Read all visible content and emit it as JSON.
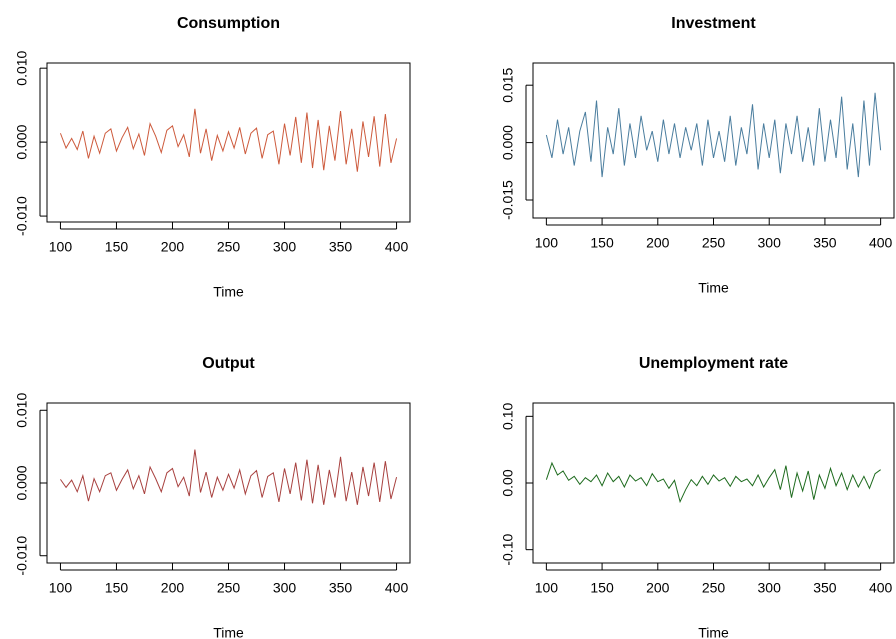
{
  "chart_data": [
    {
      "type": "line",
      "title": "Consumption",
      "xlabel": "Time",
      "color": "#cd5a3c",
      "x": [
        100,
        105,
        110,
        115,
        120,
        125,
        130,
        135,
        140,
        145,
        150,
        155,
        160,
        165,
        170,
        175,
        180,
        185,
        190,
        195,
        200,
        205,
        210,
        215,
        220,
        225,
        230,
        235,
        240,
        245,
        250,
        255,
        260,
        265,
        270,
        275,
        280,
        285,
        290,
        295,
        300,
        305,
        310,
        315,
        320,
        325,
        330,
        335,
        340,
        345,
        350,
        355,
        360,
        365,
        370,
        375,
        380,
        385,
        390,
        395,
        400
      ],
      "values": [
        0.0012,
        -0.0008,
        0.0005,
        -0.001,
        0.0015,
        -0.0022,
        0.0008,
        -0.0015,
        0.0012,
        0.0018,
        -0.0012,
        0.0006,
        0.002,
        -0.0009,
        0.0011,
        -0.0018,
        0.0025,
        0.0008,
        -0.0014,
        0.0016,
        0.0022,
        -0.0006,
        0.001,
        -0.002,
        0.0045,
        -0.0015,
        0.0018,
        -0.0025,
        0.0009,
        -0.0012,
        0.0014,
        -0.0008,
        0.002,
        -0.0016,
        0.0012,
        0.0019,
        -0.0022,
        0.001,
        0.0015,
        -0.003,
        0.0025,
        -0.0018,
        0.0034,
        -0.0028,
        0.004,
        -0.0035,
        0.003,
        -0.0038,
        0.0022,
        -0.0025,
        0.0042,
        -0.003,
        0.0018,
        -0.004,
        0.0028,
        -0.002,
        0.0035,
        -0.0033,
        0.0038,
        -0.0028,
        0.0005
      ],
      "xlim": [
        88,
        412
      ],
      "xticks": [
        100,
        150,
        200,
        250,
        300,
        350,
        400
      ],
      "ylim": [
        -0.0108,
        0.0107
      ],
      "yticks": [
        {
          "value": -0.01,
          "label": "-0.010"
        },
        {
          "value": 0,
          "label": "0.000"
        },
        {
          "value": 0.01,
          "label": "0.010"
        }
      ]
    },
    {
      "type": "line",
      "title": "Investment",
      "xlabel": "Time",
      "color": "#4a7d9e",
      "x": [
        100,
        105,
        110,
        115,
        120,
        125,
        130,
        135,
        140,
        145,
        150,
        155,
        160,
        165,
        170,
        175,
        180,
        185,
        190,
        195,
        200,
        205,
        210,
        215,
        220,
        225,
        230,
        235,
        240,
        245,
        250,
        255,
        260,
        265,
        270,
        275,
        280,
        285,
        290,
        295,
        300,
        305,
        310,
        315,
        320,
        325,
        330,
        335,
        340,
        345,
        350,
        355,
        360,
        365,
        370,
        375,
        380,
        385,
        390,
        395,
        400
      ],
      "values": [
        0.002,
        -0.004,
        0.006,
        -0.003,
        0.004,
        -0.006,
        0.003,
        0.008,
        -0.005,
        0.011,
        -0.009,
        0.004,
        -0.003,
        0.009,
        -0.006,
        0.005,
        -0.004,
        0.007,
        -0.002,
        0.003,
        -0.005,
        0.006,
        -0.003,
        0.005,
        -0.004,
        0.004,
        -0.002,
        0.005,
        -0.006,
        0.006,
        -0.004,
        0.003,
        -0.005,
        0.007,
        -0.006,
        0.004,
        -0.003,
        0.01,
        -0.007,
        0.005,
        -0.004,
        0.006,
        -0.008,
        0.005,
        -0.003,
        0.007,
        -0.005,
        0.004,
        -0.006,
        0.009,
        -0.005,
        0.006,
        -0.004,
        0.012,
        -0.007,
        0.005,
        -0.009,
        0.011,
        -0.006,
        0.013,
        -0.002
      ],
      "xlim": [
        88,
        412
      ],
      "xticks": [
        100,
        150,
        200,
        250,
        300,
        350,
        400
      ],
      "ylim": [
        -0.0197,
        0.0208
      ],
      "yticks": [
        {
          "value": -0.015,
          "label": "-0.015"
        },
        {
          "value": 0,
          "label": "0.000"
        },
        {
          "value": 0.015,
          "label": "0.015"
        }
      ]
    },
    {
      "type": "line",
      "title": "Output",
      "xlabel": "Time",
      "color": "#a8413f",
      "x": [
        100,
        105,
        110,
        115,
        120,
        125,
        130,
        135,
        140,
        145,
        150,
        155,
        160,
        165,
        170,
        175,
        180,
        185,
        190,
        195,
        200,
        205,
        210,
        215,
        220,
        225,
        230,
        235,
        240,
        245,
        250,
        255,
        260,
        265,
        270,
        275,
        280,
        285,
        290,
        295,
        300,
        305,
        310,
        315,
        320,
        325,
        330,
        335,
        340,
        345,
        350,
        355,
        360,
        365,
        370,
        375,
        380,
        385,
        390,
        395,
        400
      ],
      "values": [
        0.0005,
        -0.0006,
        0.0004,
        -0.0012,
        0.001,
        -0.0025,
        0.0006,
        -0.0012,
        0.001,
        0.0014,
        -0.001,
        0.0005,
        0.0018,
        -0.0008,
        0.001,
        -0.0015,
        0.0022,
        0.0006,
        -0.0012,
        0.0014,
        0.002,
        -0.0005,
        0.0008,
        -0.0018,
        0.0046,
        -0.0013,
        0.0015,
        -0.002,
        0.0008,
        -0.001,
        0.0012,
        -0.0007,
        0.0018,
        -0.0015,
        0.001,
        0.0017,
        -0.002,
        0.0009,
        0.0014,
        -0.0026,
        0.002,
        -0.0015,
        0.0028,
        -0.0024,
        0.0032,
        -0.0028,
        0.0025,
        -0.003,
        0.0018,
        -0.002,
        0.0036,
        -0.0025,
        0.0015,
        -0.003,
        0.0022,
        -0.0018,
        0.0028,
        -0.0026,
        0.003,
        -0.0022,
        0.0008
      ],
      "xlim": [
        88,
        412
      ],
      "xticks": [
        100,
        150,
        200,
        250,
        300,
        350,
        400
      ],
      "ylim": [
        -0.011,
        0.011
      ],
      "yticks": [
        {
          "value": -0.01,
          "label": "-0.010"
        },
        {
          "value": 0,
          "label": "0.000"
        },
        {
          "value": 0.01,
          "label": "0.010"
        }
      ]
    },
    {
      "type": "line",
      "title": "Unemployment rate",
      "xlabel": "Time",
      "color": "#1e6b1e",
      "x": [
        100,
        105,
        110,
        115,
        120,
        125,
        130,
        135,
        140,
        145,
        150,
        155,
        160,
        165,
        170,
        175,
        180,
        185,
        190,
        195,
        200,
        205,
        210,
        215,
        220,
        225,
        230,
        235,
        240,
        245,
        250,
        255,
        260,
        265,
        270,
        275,
        280,
        285,
        290,
        295,
        300,
        305,
        310,
        315,
        320,
        325,
        330,
        335,
        340,
        345,
        350,
        355,
        360,
        365,
        370,
        375,
        380,
        385,
        390,
        395,
        400
      ],
      "values": [
        0.005,
        0.03,
        0.012,
        0.018,
        0.004,
        0.01,
        -0.002,
        0.008,
        0.002,
        0.012,
        -0.004,
        0.015,
        0.002,
        0.01,
        -0.006,
        0.012,
        0.003,
        0.008,
        -0.004,
        0.014,
        0.002,
        0.006,
        -0.008,
        0.004,
        -0.028,
        -0.01,
        0.005,
        -0.004,
        0.01,
        -0.002,
        0.012,
        0.003,
        0.008,
        -0.005,
        0.01,
        0.002,
        0.006,
        -0.004,
        0.012,
        -0.006,
        0.008,
        0.02,
        -0.01,
        0.026,
        -0.022,
        0.015,
        -0.012,
        0.018,
        -0.025,
        0.012,
        -0.008,
        0.022,
        -0.004,
        0.015,
        -0.01,
        0.012,
        -0.006,
        0.01,
        -0.008,
        0.014,
        0.02
      ],
      "xlim": [
        88,
        412
      ],
      "xticks": [
        100,
        150,
        200,
        250,
        300,
        350,
        400
      ],
      "ylim": [
        -0.12,
        0.12
      ],
      "yticks": [
        {
          "value": -0.1,
          "label": "-0.10"
        },
        {
          "value": 0,
          "label": "0.00"
        },
        {
          "value": 0.1,
          "label": "0.10"
        }
      ]
    }
  ]
}
